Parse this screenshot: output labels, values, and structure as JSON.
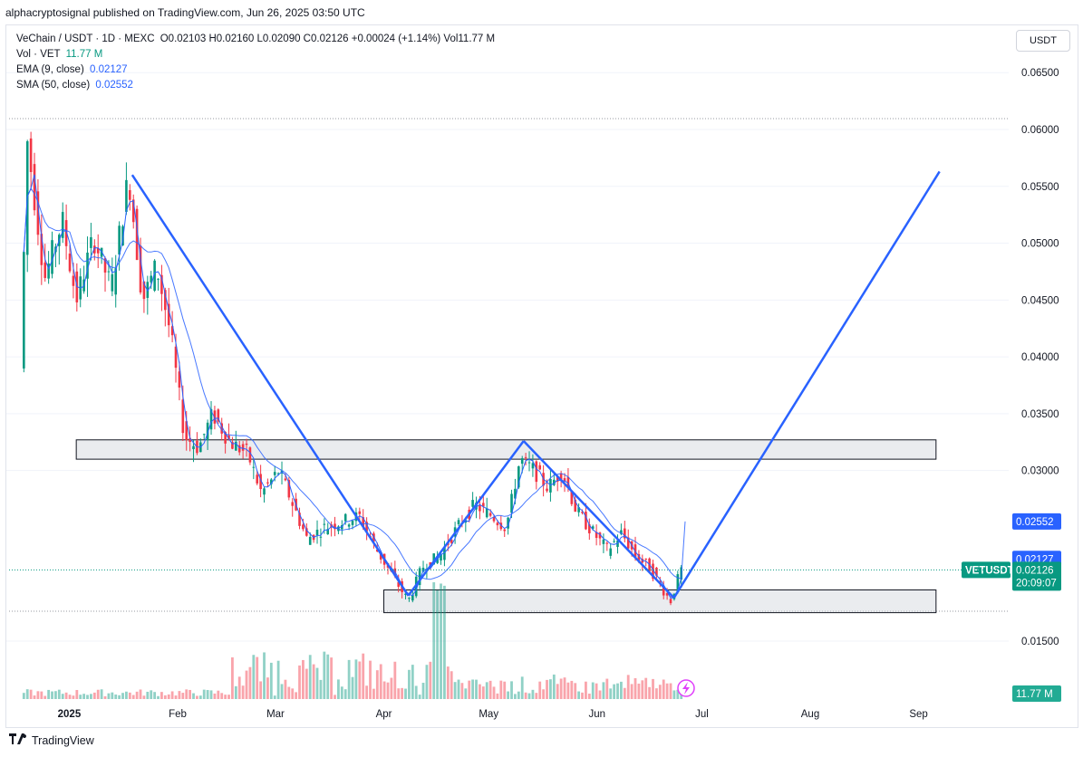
{
  "header": {
    "publisher": "alphacryptosignal published on TradingView.com, Jun 26, 2025 03:50 UTC"
  },
  "legend": {
    "symbol": "VeChain / USDT · 1D · MEXC",
    "ohlc": "O0.02103 H0.02160 L0.02090 C0.02126 +0.00024 (+1.14%) Vol11.77 M",
    "vol_label": "Vol · VET",
    "vol_value": "11.77 M",
    "ema_label": "EMA (9, close)",
    "ema_value": "0.02127",
    "sma_label": "SMA (50, close)",
    "sma_value": "0.02552"
  },
  "currency": "USDT",
  "footer": {
    "brand": "TradingView"
  },
  "colors": {
    "up": "#089981",
    "down": "#f23645",
    "ema": "#2962ff",
    "sma": "#2962ff",
    "trend": "#2962ff"
  },
  "chart_data": {
    "type": "candlestick",
    "title": "VeChain / USDT · 1D · MEXC",
    "y_ticks": [
      "0.06500",
      "0.06000",
      "0.05500",
      "0.05000",
      "0.04500",
      "0.04000",
      "0.03500",
      "0.03000",
      "0.01500"
    ],
    "x_ticks": [
      "2025",
      "Feb",
      "Mar",
      "Apr",
      "May",
      "Jun",
      "Jul",
      "Aug",
      "Sep"
    ],
    "ylim": [
      0.012,
      0.0675
    ],
    "price_labels": [
      {
        "name": "SMA",
        "value": "0.02552",
        "price": 0.02552
      },
      {
        "name": "EMA",
        "value": "0.02127",
        "price": 0.02127
      },
      {
        "name": "VETUSDT",
        "value": "0.02126",
        "countdown": "20:09:07",
        "price": 0.02126
      }
    ],
    "volume_label": "11.77 M",
    "ohlc_points": [
      {
        "date": "2024-12-19",
        "price": 0.039
      },
      {
        "date": "2024-12-21",
        "price": 0.059
      },
      {
        "date": "2024-12-26",
        "price": 0.047
      },
      {
        "date": "2024-12-31",
        "price": 0.052
      },
      {
        "date": "2025-01-04",
        "price": 0.045
      },
      {
        "date": "2025-01-09",
        "price": 0.0505
      },
      {
        "date": "2025-01-14",
        "price": 0.046
      },
      {
        "date": "2025-01-19",
        "price": 0.056
      },
      {
        "date": "2025-01-23",
        "price": 0.045
      },
      {
        "date": "2025-01-27",
        "price": 0.048
      },
      {
        "date": "2025-01-31",
        "price": 0.042
      },
      {
        "date": "2025-02-04",
        "price": 0.033
      },
      {
        "date": "2025-02-08",
        "price": 0.032
      },
      {
        "date": "2025-02-12",
        "price": 0.035
      },
      {
        "date": "2025-02-17",
        "price": 0.0325
      },
      {
        "date": "2025-02-22",
        "price": 0.0315
      },
      {
        "date": "2025-02-26",
        "price": 0.028
      },
      {
        "date": "2025-03-03",
        "price": 0.03
      },
      {
        "date": "2025-03-07",
        "price": 0.027
      },
      {
        "date": "2025-03-11",
        "price": 0.024
      },
      {
        "date": "2025-03-16",
        "price": 0.025
      },
      {
        "date": "2025-03-21",
        "price": 0.0255
      },
      {
        "date": "2025-03-26",
        "price": 0.026
      },
      {
        "date": "2025-03-31",
        "price": 0.023
      },
      {
        "date": "2025-04-05",
        "price": 0.0205
      },
      {
        "date": "2025-04-09",
        "price": 0.0185
      },
      {
        "date": "2025-04-13",
        "price": 0.0215
      },
      {
        "date": "2025-04-18",
        "price": 0.0225
      },
      {
        "date": "2025-04-23",
        "price": 0.025
      },
      {
        "date": "2025-04-28",
        "price": 0.027
      },
      {
        "date": "2025-05-03",
        "price": 0.026
      },
      {
        "date": "2025-05-07",
        "price": 0.025
      },
      {
        "date": "2025-05-11",
        "price": 0.031
      },
      {
        "date": "2025-05-15",
        "price": 0.03
      },
      {
        "date": "2025-05-19",
        "price": 0.0285
      },
      {
        "date": "2025-05-23",
        "price": 0.03
      },
      {
        "date": "2025-05-27",
        "price": 0.0265
      },
      {
        "date": "2025-06-01",
        "price": 0.0245
      },
      {
        "date": "2025-06-05",
        "price": 0.023
      },
      {
        "date": "2025-06-09",
        "price": 0.0245
      },
      {
        "date": "2025-06-13",
        "price": 0.0225
      },
      {
        "date": "2025-06-17",
        "price": 0.0215
      },
      {
        "date": "2025-06-21",
        "price": 0.0195
      },
      {
        "date": "2025-06-23",
        "price": 0.0185
      },
      {
        "date": "2025-06-26",
        "price": 0.02126
      }
    ],
    "zones": [
      {
        "name": "resistance",
        "low": 0.031,
        "high": 0.0327,
        "from": "2025-01-03",
        "to": "2025-09-06"
      },
      {
        "name": "support",
        "low": 0.0175,
        "high": 0.0195,
        "from": "2025-04-01",
        "to": "2025-09-06"
      }
    ],
    "trendlines": [
      {
        "from": {
          "date": "2025-01-19",
          "price": 0.056
        },
        "to": {
          "date": "2025-04-08",
          "price": 0.019
        }
      },
      {
        "from": {
          "date": "2025-04-08",
          "price": 0.019
        },
        "to": {
          "date": "2025-05-11",
          "price": 0.0326
        }
      },
      {
        "from": {
          "date": "2025-05-11",
          "price": 0.0326
        },
        "to": {
          "date": "2025-06-23",
          "price": 0.0188
        }
      },
      {
        "from": {
          "date": "2025-06-23",
          "price": 0.0188
        },
        "to": {
          "date": "2025-09-07",
          "price": 0.0563
        }
      }
    ]
  }
}
